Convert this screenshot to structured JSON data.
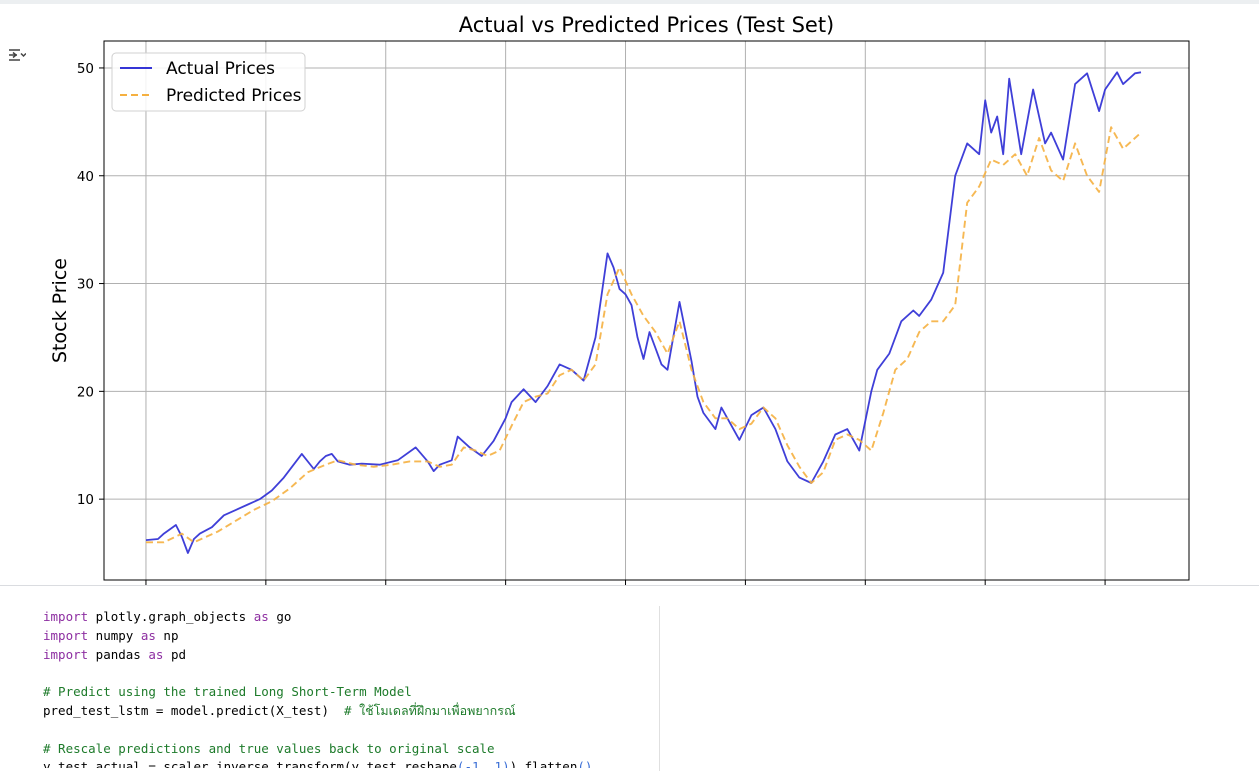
{
  "notebook": {
    "output_toggle_icon": "output-toggle-icon",
    "code_lines": [
      [
        {
          "t": "import",
          "c": "kw"
        },
        {
          "t": " plotly.graph_objects "
        },
        {
          "t": "as",
          "c": "kw"
        },
        {
          "t": " go"
        }
      ],
      [
        {
          "t": "import",
          "c": "kw"
        },
        {
          "t": " numpy "
        },
        {
          "t": "as",
          "c": "kw"
        },
        {
          "t": " np"
        }
      ],
      [
        {
          "t": "import",
          "c": "kw"
        },
        {
          "t": " pandas "
        },
        {
          "t": "as",
          "c": "kw"
        },
        {
          "t": " pd"
        }
      ],
      [
        {
          "t": ""
        }
      ],
      [
        {
          "t": "# Predict using the trained Long Short-Term Model",
          "c": "cm"
        }
      ],
      [
        {
          "t": "pred_test_lstm = model.predict(X_test)  "
        },
        {
          "t": "# ใช้โมเดลที่ฝึกมาเพื่อพยากรณ์",
          "c": "cm"
        }
      ],
      [
        {
          "t": ""
        }
      ],
      [
        {
          "t": "# Rescale predictions and true values back to original scale",
          "c": "cm"
        }
      ],
      [
        {
          "t": "y_test_actual = scaler.inverse_transform(y_test.reshape"
        },
        {
          "t": "(-1, 1)",
          "c": "paren-blue"
        },
        {
          "t": ").flatten"
        },
        {
          "t": "()",
          "c": "paren-blue"
        }
      ]
    ]
  },
  "chart_data": {
    "type": "line",
    "title": "Actual vs Predicted Prices (Test Set)",
    "xlabel": "",
    "ylabel": "Stock Price",
    "ylim": [
      2.5,
      52.5
    ],
    "yticks": [
      10,
      20,
      30,
      40,
      50
    ],
    "xlim": [
      -0.35,
      8.7
    ],
    "xticks": [
      0,
      1,
      2,
      3,
      4,
      5,
      6,
      7,
      8
    ],
    "xtick_labels_visible": false,
    "grid": true,
    "legend": "top-left",
    "series": [
      {
        "name": "Actual Prices",
        "color": "#3535d6",
        "style": "solid",
        "x": [
          0.0,
          0.1,
          0.15,
          0.25,
          0.3,
          0.35,
          0.4,
          0.45,
          0.55,
          0.65,
          0.75,
          0.85,
          0.95,
          1.05,
          1.15,
          1.3,
          1.4,
          1.45,
          1.5,
          1.55,
          1.6,
          1.7,
          1.8,
          1.95,
          2.1,
          2.25,
          2.35,
          2.4,
          2.45,
          2.55,
          2.6,
          2.7,
          2.8,
          2.9,
          3.0,
          3.05,
          3.15,
          3.25,
          3.35,
          3.45,
          3.55,
          3.65,
          3.75,
          3.85,
          3.9,
          3.95,
          4.0,
          4.05,
          4.1,
          4.15,
          4.2,
          4.25,
          4.3,
          4.35,
          4.45,
          4.55,
          4.6,
          4.65,
          4.75,
          4.8,
          4.85,
          4.95,
          5.05,
          5.15,
          5.25,
          5.35,
          5.45,
          5.55,
          5.65,
          5.75,
          5.85,
          5.95,
          6.05,
          6.1,
          6.2,
          6.3,
          6.4,
          6.45,
          6.55,
          6.65,
          6.75,
          6.85,
          6.95,
          7.0,
          7.05,
          7.1,
          7.15,
          7.2,
          7.3,
          7.4,
          7.5,
          7.55,
          7.65,
          7.75,
          7.85,
          7.95,
          8.0,
          8.1,
          8.15,
          8.2,
          8.25,
          8.3
        ],
        "values": [
          6.2,
          6.3,
          6.8,
          7.6,
          6.5,
          5.0,
          6.3,
          6.8,
          7.4,
          8.5,
          9.0,
          9.5,
          10.0,
          10.8,
          12.0,
          14.2,
          12.8,
          13.5,
          14.0,
          14.2,
          13.5,
          13.2,
          13.3,
          13.2,
          13.6,
          14.8,
          13.5,
          12.6,
          13.2,
          13.6,
          15.8,
          14.8,
          14.0,
          15.4,
          17.5,
          19.0,
          20.2,
          19.0,
          20.5,
          22.5,
          22.0,
          21.0,
          25.0,
          32.8,
          31.5,
          29.5,
          29.0,
          28.0,
          25.0,
          23.0,
          25.5,
          24.0,
          22.5,
          22.0,
          28.3,
          22.8,
          19.5,
          18.0,
          16.5,
          18.5,
          17.5,
          15.5,
          17.8,
          18.5,
          16.5,
          13.5,
          12.0,
          11.5,
          13.5,
          16.0,
          16.5,
          14.5,
          20.0,
          22.0,
          23.5,
          26.5,
          27.5,
          27.0,
          28.5,
          31.0,
          40.0,
          43.0,
          42.0,
          47.0,
          44.0,
          45.5,
          42.0,
          49.0,
          42.0,
          48.0,
          43.0,
          44.0,
          41.5,
          48.5,
          49.5,
          46.0,
          48.0,
          49.6,
          48.5,
          49.0,
          49.5,
          49.6
        ]
      },
      {
        "name": "Predicted Prices",
        "color": "#f5b040",
        "style": "dashed",
        "x": [
          0.0,
          0.15,
          0.3,
          0.4,
          0.5,
          0.6,
          0.75,
          0.9,
          1.05,
          1.2,
          1.35,
          1.5,
          1.6,
          1.75,
          1.9,
          2.05,
          2.2,
          2.35,
          2.45,
          2.55,
          2.65,
          2.75,
          2.85,
          2.95,
          3.05,
          3.15,
          3.25,
          3.35,
          3.45,
          3.55,
          3.65,
          3.75,
          3.85,
          3.95,
          4.05,
          4.15,
          4.25,
          4.35,
          4.45,
          4.55,
          4.65,
          4.75,
          4.85,
          4.95,
          5.05,
          5.15,
          5.25,
          5.35,
          5.45,
          5.55,
          5.65,
          5.75,
          5.85,
          5.95,
          6.05,
          6.15,
          6.25,
          6.35,
          6.45,
          6.55,
          6.65,
          6.75,
          6.85,
          6.95,
          7.05,
          7.15,
          7.25,
          7.35,
          7.45,
          7.55,
          7.65,
          7.75,
          7.85,
          7.95,
          8.05,
          8.15,
          8.3
        ],
        "values": [
          6.0,
          6.0,
          6.8,
          6.0,
          6.5,
          7.0,
          8.0,
          9.0,
          9.8,
          11.0,
          12.5,
          13.2,
          13.6,
          13.2,
          13.0,
          13.2,
          13.5,
          13.5,
          13.0,
          13.2,
          14.8,
          14.5,
          14.0,
          14.5,
          16.8,
          19.0,
          19.5,
          19.8,
          21.5,
          22.0,
          21.0,
          22.5,
          29.0,
          31.5,
          29.0,
          27.0,
          25.5,
          23.5,
          26.5,
          22.0,
          19.0,
          17.5,
          17.5,
          16.5,
          17.0,
          18.5,
          17.5,
          15.0,
          13.0,
          11.5,
          12.5,
          15.5,
          16.0,
          15.5,
          14.5,
          18.0,
          22.0,
          23.0,
          25.5,
          26.5,
          26.5,
          28.0,
          37.5,
          39.0,
          41.5,
          41.0,
          42.0,
          40.0,
          43.5,
          40.5,
          39.5,
          43.0,
          40.0,
          38.5,
          44.5,
          42.5,
          44.0
        ]
      }
    ]
  }
}
